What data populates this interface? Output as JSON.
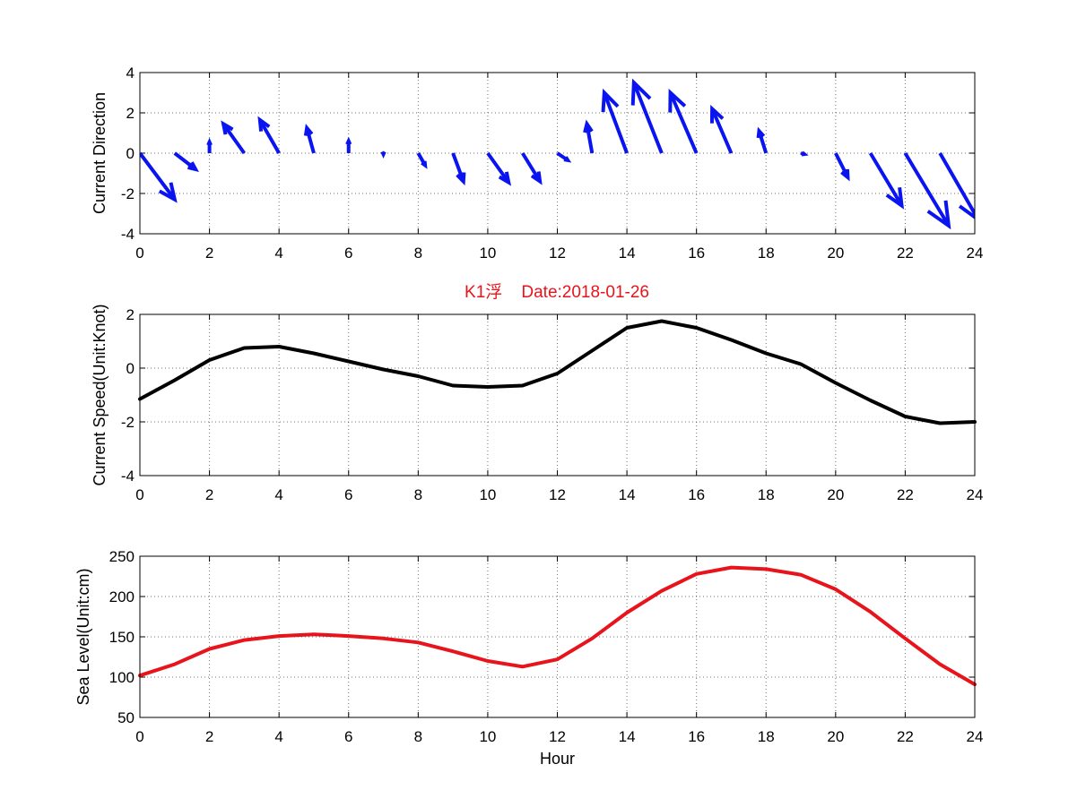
{
  "figure": {
    "title": "K1浮    Date:2018-01-26",
    "title_color": "#e8141c"
  },
  "chart_data": [
    {
      "type": "quiver",
      "id": "direction",
      "title": "",
      "xlabel": "",
      "ylabel": "Current Direction",
      "xlim": [
        0,
        24
      ],
      "ylim": [
        -4,
        4
      ],
      "xticks": [
        0,
        2,
        4,
        6,
        8,
        10,
        12,
        14,
        16,
        18,
        20,
        22,
        24
      ],
      "yticks": [
        -4,
        -2,
        0,
        2,
        4
      ],
      "grid": true,
      "color": "#0a14f0",
      "arrows": [
        {
          "x": 0,
          "u": 1.0,
          "v": -2.3
        },
        {
          "x": 1,
          "u": 0.6,
          "v": -0.8
        },
        {
          "x": 2,
          "u": 0.0,
          "v": 0.55
        },
        {
          "x": 3,
          "u": -0.6,
          "v": 1.45
        },
        {
          "x": 4,
          "u": -0.55,
          "v": 1.65
        },
        {
          "x": 5,
          "u": -0.2,
          "v": 1.25
        },
        {
          "x": 6,
          "u": 0.0,
          "v": 0.6
        },
        {
          "x": 7,
          "u": 0.0,
          "v": -0.05
        },
        {
          "x": 8,
          "u": 0.2,
          "v": -0.6
        },
        {
          "x": 9,
          "u": 0.3,
          "v": -1.4
        },
        {
          "x": 10,
          "u": 0.6,
          "v": -1.45
        },
        {
          "x": 11,
          "u": 0.5,
          "v": -1.4
        },
        {
          "x": 12,
          "u": 0.3,
          "v": -0.35
        },
        {
          "x": 13,
          "u": -0.15,
          "v": 1.45
        },
        {
          "x": 14,
          "u": -0.65,
          "v": 3.0
        },
        {
          "x": 15,
          "u": -0.8,
          "v": 3.5
        },
        {
          "x": 16,
          "u": -0.75,
          "v": 3.0
        },
        {
          "x": 17,
          "u": -0.55,
          "v": 2.2
        },
        {
          "x": 18,
          "u": -0.2,
          "v": 1.1
        },
        {
          "x": 19,
          "u": 0.1,
          "v": -0.05
        },
        {
          "x": 20,
          "u": 0.35,
          "v": -1.2
        },
        {
          "x": 21,
          "u": 0.9,
          "v": -2.6
        },
        {
          "x": 22,
          "u": 1.25,
          "v": -3.6
        },
        {
          "x": 23,
          "u": 1.1,
          "v": -3.3
        }
      ]
    },
    {
      "type": "line",
      "id": "speed",
      "title": "",
      "xlabel": "",
      "ylabel": "Current Speed(Unit:Knot)",
      "xlim": [
        0,
        24
      ],
      "ylim": [
        -4,
        2
      ],
      "xticks": [
        0,
        2,
        4,
        6,
        8,
        10,
        12,
        14,
        16,
        18,
        20,
        22,
        24
      ],
      "yticks": [
        -4,
        -2,
        0,
        2
      ],
      "grid": true,
      "color": "#000000",
      "x": [
        0,
        1,
        2,
        3,
        4,
        5,
        6,
        7,
        8,
        9,
        10,
        11,
        12,
        13,
        14,
        15,
        16,
        17,
        18,
        19,
        20,
        21,
        22,
        23,
        24
      ],
      "y": [
        -1.15,
        -0.45,
        0.3,
        0.75,
        0.8,
        0.55,
        0.25,
        -0.05,
        -0.3,
        -0.65,
        -0.7,
        -0.65,
        -0.2,
        0.65,
        1.5,
        1.75,
        1.5,
        1.05,
        0.55,
        0.15,
        -0.55,
        -1.2,
        -1.8,
        -2.05,
        -2.0
      ]
    },
    {
      "type": "line",
      "id": "sealevel",
      "title": "",
      "xlabel": "Hour",
      "ylabel": "Sea Level(Unit:cm)",
      "xlim": [
        0,
        24
      ],
      "ylim": [
        50,
        250
      ],
      "xticks": [
        0,
        2,
        4,
        6,
        8,
        10,
        12,
        14,
        16,
        18,
        20,
        22,
        24
      ],
      "yticks": [
        50,
        100,
        150,
        200,
        250
      ],
      "grid": true,
      "color": "#e8141c",
      "x": [
        0,
        1,
        2,
        3,
        4,
        5,
        6,
        7,
        8,
        9,
        10,
        11,
        12,
        13,
        14,
        15,
        16,
        17,
        18,
        19,
        20,
        21,
        22,
        23,
        24
      ],
      "y": [
        102,
        116,
        135,
        146,
        151,
        153,
        151,
        148,
        143,
        132,
        120,
        113,
        122,
        148,
        180,
        207,
        228,
        236,
        234,
        227,
        209,
        181,
        148,
        116,
        91
      ]
    }
  ]
}
